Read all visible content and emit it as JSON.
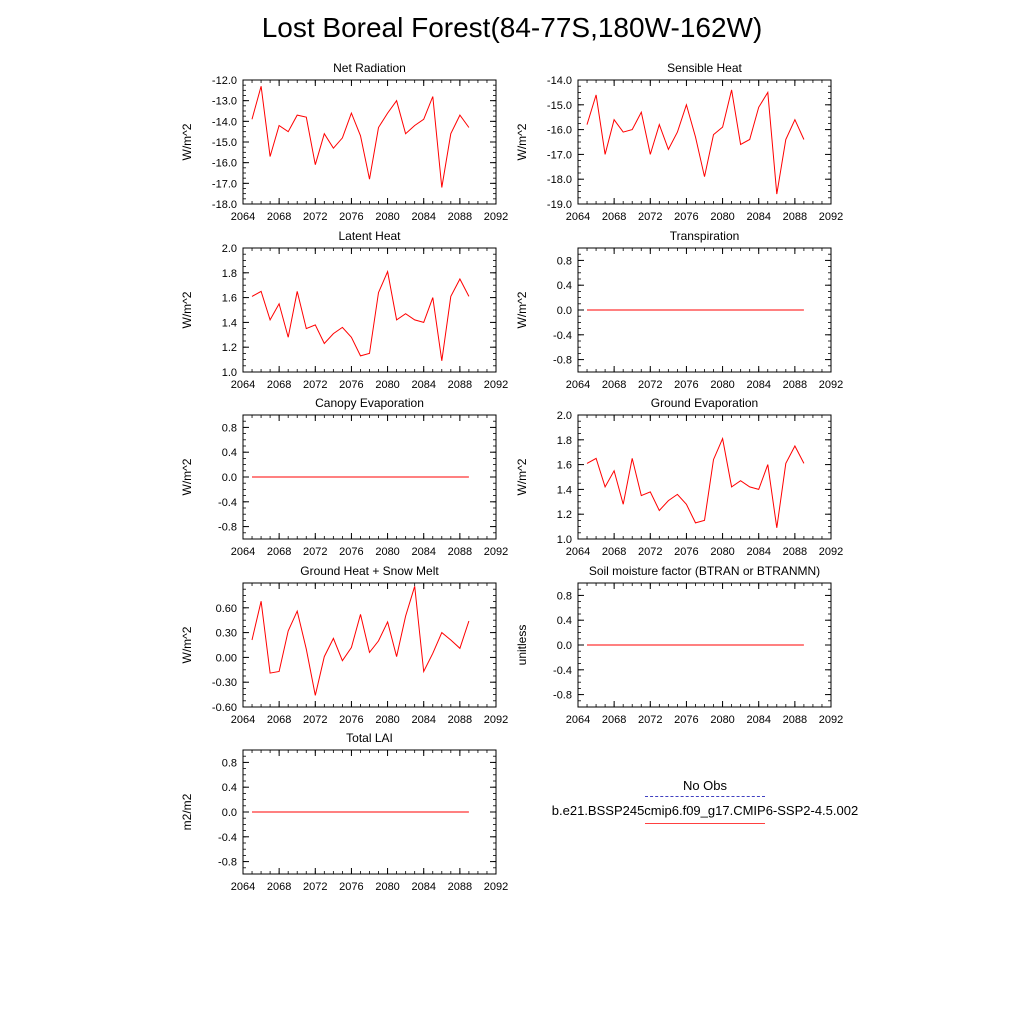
{
  "title": "Lost Boreal Forest(84-77S,180W-162W)",
  "legend": {
    "obs_label": "No Obs",
    "model_label": "b.e21.BSSP245cmip6.f09_g17.CMIP6-SSP2-4.5.002",
    "model_color": "#ff0000",
    "obs_color": "#4040c0"
  },
  "chart_data": [
    {
      "type": "line",
      "title": "Net Radiation",
      "ylabel": "W/m^2",
      "xlim": [
        2064,
        2092
      ],
      "ylim": [
        -18.0,
        -12.0
      ],
      "xticks": [
        "2064",
        "2068",
        "2072",
        "2076",
        "2080",
        "2084",
        "2088",
        "2092"
      ],
      "yticks": [
        "-18.0",
        "-17.0",
        "-16.0",
        "-15.0",
        "-14.0",
        "-13.0",
        "-12.0"
      ],
      "x": [
        2065,
        2066,
        2067,
        2068,
        2069,
        2070,
        2071,
        2072,
        2073,
        2074,
        2075,
        2076,
        2077,
        2078,
        2079,
        2080,
        2081,
        2082,
        2083,
        2084,
        2085,
        2086,
        2087,
        2088,
        2089
      ],
      "series": [
        {
          "color": "#ff0000",
          "values": [
            -13.9,
            -12.3,
            -15.7,
            -14.2,
            -14.5,
            -13.7,
            -13.8,
            -16.1,
            -14.6,
            -15.3,
            -14.8,
            -13.6,
            -14.7,
            -16.8,
            -14.3,
            -13.6,
            -13.0,
            -14.6,
            -14.2,
            -13.9,
            -12.8,
            -17.2,
            -14.6,
            -13.7,
            -14.3
          ]
        }
      ]
    },
    {
      "type": "line",
      "title": "Sensible Heat",
      "ylabel": "W/m^2",
      "xlim": [
        2064,
        2092
      ],
      "ylim": [
        -19.0,
        -14.0
      ],
      "xticks": [
        "2064",
        "2068",
        "2072",
        "2076",
        "2080",
        "2084",
        "2088",
        "2092"
      ],
      "yticks": [
        "-19.0",
        "-18.0",
        "-17.0",
        "-16.0",
        "-15.0",
        "-14.0"
      ],
      "x": [
        2065,
        2066,
        2067,
        2068,
        2069,
        2070,
        2071,
        2072,
        2073,
        2074,
        2075,
        2076,
        2077,
        2078,
        2079,
        2080,
        2081,
        2082,
        2083,
        2084,
        2085,
        2086,
        2087,
        2088,
        2089
      ],
      "series": [
        {
          "color": "#ff0000",
          "values": [
            -15.8,
            -14.6,
            -17.0,
            -15.6,
            -16.1,
            -16.0,
            -15.3,
            -17.0,
            -15.8,
            -16.8,
            -16.1,
            -15.0,
            -16.3,
            -17.9,
            -16.2,
            -15.9,
            -14.4,
            -16.6,
            -16.4,
            -15.1,
            -14.5,
            -18.6,
            -16.4,
            -15.6,
            -16.4
          ]
        }
      ]
    },
    {
      "type": "line",
      "title": "Latent Heat",
      "ylabel": "W/m^2",
      "xlim": [
        2064,
        2092
      ],
      "ylim": [
        1.0,
        2.0
      ],
      "xticks": [
        "2064",
        "2068",
        "2072",
        "2076",
        "2080",
        "2084",
        "2088",
        "2092"
      ],
      "yticks": [
        "1.0",
        "1.2",
        "1.4",
        "1.6",
        "1.8",
        "2.0"
      ],
      "x": [
        2065,
        2066,
        2067,
        2068,
        2069,
        2070,
        2071,
        2072,
        2073,
        2074,
        2075,
        2076,
        2077,
        2078,
        2079,
        2080,
        2081,
        2082,
        2083,
        2084,
        2085,
        2086,
        2087,
        2088,
        2089
      ],
      "series": [
        {
          "color": "#ff0000",
          "values": [
            1.61,
            1.65,
            1.42,
            1.55,
            1.28,
            1.65,
            1.35,
            1.38,
            1.23,
            1.31,
            1.36,
            1.28,
            1.13,
            1.15,
            1.64,
            1.81,
            1.42,
            1.47,
            1.42,
            1.4,
            1.6,
            1.09,
            1.61,
            1.75,
            1.61
          ]
        }
      ]
    },
    {
      "type": "line",
      "title": "Transpiration",
      "ylabel": "W/m^2",
      "xlim": [
        2064,
        2092
      ],
      "ylim": [
        -1.0,
        1.0
      ],
      "xticks": [
        "2064",
        "2068",
        "2072",
        "2076",
        "2080",
        "2084",
        "2088",
        "2092"
      ],
      "yticks": [
        "-0.8",
        "-0.4",
        "0.0",
        "0.4",
        "0.8"
      ],
      "x": [
        2065,
        2066,
        2067,
        2068,
        2069,
        2070,
        2071,
        2072,
        2073,
        2074,
        2075,
        2076,
        2077,
        2078,
        2079,
        2080,
        2081,
        2082,
        2083,
        2084,
        2085,
        2086,
        2087,
        2088,
        2089
      ],
      "series": [
        {
          "color": "#ff0000",
          "values": [
            0,
            0,
            0,
            0,
            0,
            0,
            0,
            0,
            0,
            0,
            0,
            0,
            0,
            0,
            0,
            0,
            0,
            0,
            0,
            0,
            0,
            0,
            0,
            0,
            0
          ]
        }
      ]
    },
    {
      "type": "line",
      "title": "Canopy Evaporation",
      "ylabel": "W/m^2",
      "xlim": [
        2064,
        2092
      ],
      "ylim": [
        -1.0,
        1.0
      ],
      "xticks": [
        "2064",
        "2068",
        "2072",
        "2076",
        "2080",
        "2084",
        "2088",
        "2092"
      ],
      "yticks": [
        "-0.8",
        "-0.4",
        "0.0",
        "0.4",
        "0.8"
      ],
      "x": [
        2065,
        2066,
        2067,
        2068,
        2069,
        2070,
        2071,
        2072,
        2073,
        2074,
        2075,
        2076,
        2077,
        2078,
        2079,
        2080,
        2081,
        2082,
        2083,
        2084,
        2085,
        2086,
        2087,
        2088,
        2089
      ],
      "series": [
        {
          "color": "#ff0000",
          "values": [
            0,
            0,
            0,
            0,
            0,
            0,
            0,
            0,
            0,
            0,
            0,
            0,
            0,
            0,
            0,
            0,
            0,
            0,
            0,
            0,
            0,
            0,
            0,
            0,
            0
          ]
        }
      ]
    },
    {
      "type": "line",
      "title": "Ground Evaporation",
      "ylabel": "W/m^2",
      "xlim": [
        2064,
        2092
      ],
      "ylim": [
        1.0,
        2.0
      ],
      "xticks": [
        "2064",
        "2068",
        "2072",
        "2076",
        "2080",
        "2084",
        "2088",
        "2092"
      ],
      "yticks": [
        "1.0",
        "1.2",
        "1.4",
        "1.6",
        "1.8",
        "2.0"
      ],
      "x": [
        2065,
        2066,
        2067,
        2068,
        2069,
        2070,
        2071,
        2072,
        2073,
        2074,
        2075,
        2076,
        2077,
        2078,
        2079,
        2080,
        2081,
        2082,
        2083,
        2084,
        2085,
        2086,
        2087,
        2088,
        2089
      ],
      "series": [
        {
          "color": "#ff0000",
          "values": [
            1.61,
            1.65,
            1.42,
            1.55,
            1.28,
            1.65,
            1.35,
            1.38,
            1.23,
            1.31,
            1.36,
            1.28,
            1.13,
            1.15,
            1.64,
            1.81,
            1.42,
            1.47,
            1.42,
            1.4,
            1.6,
            1.09,
            1.61,
            1.75,
            1.61
          ]
        }
      ]
    },
    {
      "type": "line",
      "title": "Ground Heat + Snow Melt",
      "ylabel": "W/m^2",
      "xlim": [
        2064,
        2092
      ],
      "ylim": [
        -0.6,
        0.9
      ],
      "xticks": [
        "2064",
        "2068",
        "2072",
        "2076",
        "2080",
        "2084",
        "2088",
        "2092"
      ],
      "yticks": [
        "-0.60",
        "-0.30",
        "0.00",
        "0.30",
        "0.60"
      ],
      "x": [
        2065,
        2066,
        2067,
        2068,
        2069,
        2070,
        2071,
        2072,
        2073,
        2074,
        2075,
        2076,
        2077,
        2078,
        2079,
        2080,
        2081,
        2082,
        2083,
        2084,
        2085,
        2086,
        2087,
        2088,
        2089
      ],
      "series": [
        {
          "color": "#ff0000",
          "values": [
            0.21,
            0.68,
            -0.19,
            -0.17,
            0.32,
            0.56,
            0.1,
            -0.46,
            0.01,
            0.23,
            -0.04,
            0.12,
            0.52,
            0.06,
            0.2,
            0.43,
            0.01,
            0.5,
            0.86,
            -0.17,
            0.05,
            0.3,
            0.21,
            0.11,
            0.44
          ]
        }
      ]
    },
    {
      "type": "line",
      "title": "Soil moisture factor (BTRAN or BTRANMN)",
      "ylabel": "unitless",
      "xlim": [
        2064,
        2092
      ],
      "ylim": [
        -1.0,
        1.0
      ],
      "xticks": [
        "2064",
        "2068",
        "2072",
        "2076",
        "2080",
        "2084",
        "2088",
        "2092"
      ],
      "yticks": [
        "-0.8",
        "-0.4",
        "0.0",
        "0.4",
        "0.8"
      ],
      "x": [
        2065,
        2066,
        2067,
        2068,
        2069,
        2070,
        2071,
        2072,
        2073,
        2074,
        2075,
        2076,
        2077,
        2078,
        2079,
        2080,
        2081,
        2082,
        2083,
        2084,
        2085,
        2086,
        2087,
        2088,
        2089
      ],
      "series": [
        {
          "color": "#ff0000",
          "values": [
            0,
            0,
            0,
            0,
            0,
            0,
            0,
            0,
            0,
            0,
            0,
            0,
            0,
            0,
            0,
            0,
            0,
            0,
            0,
            0,
            0,
            0,
            0,
            0,
            0
          ]
        }
      ]
    },
    {
      "type": "line",
      "title": "Total LAI",
      "ylabel": "m2/m2",
      "xlim": [
        2064,
        2092
      ],
      "ylim": [
        -1.0,
        1.0
      ],
      "xticks": [
        "2064",
        "2068",
        "2072",
        "2076",
        "2080",
        "2084",
        "2088",
        "2092"
      ],
      "yticks": [
        "-0.8",
        "-0.4",
        "0.0",
        "0.4",
        "0.8"
      ],
      "x": [
        2065,
        2066,
        2067,
        2068,
        2069,
        2070,
        2071,
        2072,
        2073,
        2074,
        2075,
        2076,
        2077,
        2078,
        2079,
        2080,
        2081,
        2082,
        2083,
        2084,
        2085,
        2086,
        2087,
        2088,
        2089
      ],
      "series": [
        {
          "color": "#ff0000",
          "values": [
            0,
            0,
            0,
            0,
            0,
            0,
            0,
            0,
            0,
            0,
            0,
            0,
            0,
            0,
            0,
            0,
            0,
            0,
            0,
            0,
            0,
            0,
            0,
            0,
            0
          ]
        }
      ]
    }
  ]
}
